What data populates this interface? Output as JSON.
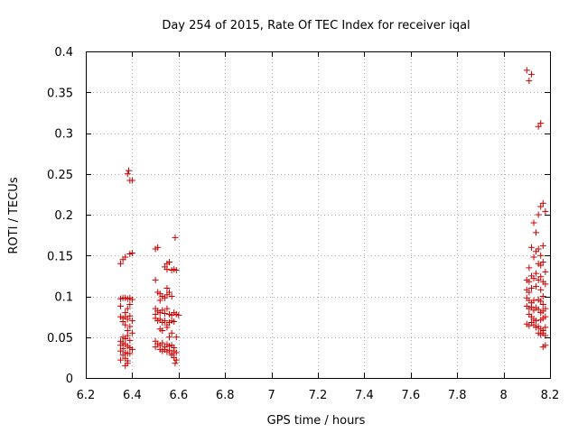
{
  "chart_data": {
    "type": "scatter",
    "title": "Day 254 of 2015, Rate Of TEC Index for receiver iqal",
    "xlabel": "GPS time / hours",
    "ylabel": "ROTI / TECUs",
    "xlim": [
      6.2,
      8.2
    ],
    "ylim": [
      0,
      0.4
    ],
    "x_ticks": [
      6.2,
      6.4,
      6.6,
      6.8,
      7,
      7.2,
      7.4,
      7.6,
      7.8,
      8,
      8.2
    ],
    "x_tick_labels": [
      "6.2",
      "6.4",
      "6.6",
      "6.8",
      "7",
      "7.2",
      "7.4",
      "7.6",
      "7.8",
      "8",
      "8.2"
    ],
    "y_ticks": [
      0,
      0.05,
      0.1,
      0.15,
      0.2,
      0.25,
      0.3,
      0.35,
      0.4
    ],
    "y_tick_labels": [
      "0",
      "0.05",
      "0.1",
      "0.15",
      "0.2",
      "0.25",
      "0.3",
      "0.35",
      "0.4"
    ],
    "grid": true,
    "marker": "+",
    "color": "#cc0000",
    "series": [
      {
        "name": "ROTI",
        "points": [
          [
            6.35,
            0.14
          ],
          [
            6.36,
            0.145
          ],
          [
            6.37,
            0.148
          ],
          [
            6.38,
            0.25
          ],
          [
            6.385,
            0.254
          ],
          [
            6.39,
            0.242
          ],
          [
            6.4,
            0.242
          ],
          [
            6.39,
            0.152
          ],
          [
            6.4,
            0.153
          ],
          [
            6.35,
            0.097
          ],
          [
            6.36,
            0.098
          ],
          [
            6.37,
            0.098
          ],
          [
            6.38,
            0.097
          ],
          [
            6.39,
            0.098
          ],
          [
            6.4,
            0.096
          ],
          [
            6.35,
            0.088
          ],
          [
            6.38,
            0.085
          ],
          [
            6.39,
            0.09
          ],
          [
            6.37,
            0.08
          ],
          [
            6.35,
            0.075
          ],
          [
            6.36,
            0.073
          ],
          [
            6.37,
            0.075
          ],
          [
            6.38,
            0.072
          ],
          [
            6.39,
            0.076
          ],
          [
            6.4,
            0.07
          ],
          [
            6.36,
            0.069
          ],
          [
            6.37,
            0.065
          ],
          [
            6.39,
            0.063
          ],
          [
            6.38,
            0.058
          ],
          [
            6.4,
            0.055
          ],
          [
            6.36,
            0.05
          ],
          [
            6.37,
            0.048
          ],
          [
            6.38,
            0.052
          ],
          [
            6.39,
            0.046
          ],
          [
            6.35,
            0.045
          ],
          [
            6.36,
            0.043
          ],
          [
            6.35,
            0.04
          ],
          [
            6.37,
            0.041
          ],
          [
            6.38,
            0.039
          ],
          [
            6.36,
            0.036
          ],
          [
            6.39,
            0.037
          ],
          [
            6.4,
            0.035
          ],
          [
            6.35,
            0.033
          ],
          [
            6.37,
            0.031
          ],
          [
            6.38,
            0.03
          ],
          [
            6.36,
            0.028
          ],
          [
            6.39,
            0.03
          ],
          [
            6.35,
            0.022
          ],
          [
            6.37,
            0.024
          ],
          [
            6.38,
            0.021
          ],
          [
            6.37,
            0.015
          ],
          [
            6.38,
            0.018
          ],
          [
            6.5,
            0.158
          ],
          [
            6.51,
            0.16
          ],
          [
            6.55,
            0.14
          ],
          [
            6.56,
            0.142
          ],
          [
            6.54,
            0.136
          ],
          [
            6.55,
            0.133
          ],
          [
            6.57,
            0.132
          ],
          [
            6.58,
            0.133
          ],
          [
            6.59,
            0.132
          ],
          [
            6.585,
            0.172
          ],
          [
            6.5,
            0.12
          ],
          [
            6.55,
            0.11
          ],
          [
            6.51,
            0.105
          ],
          [
            6.52,
            0.103
          ],
          [
            6.53,
            0.1
          ],
          [
            6.54,
            0.098
          ],
          [
            6.55,
            0.102
          ],
          [
            6.56,
            0.105
          ],
          [
            6.57,
            0.1
          ],
          [
            6.52,
            0.095
          ],
          [
            6.5,
            0.085
          ],
          [
            6.51,
            0.082
          ],
          [
            6.52,
            0.08
          ],
          [
            6.53,
            0.083
          ],
          [
            6.5,
            0.078
          ],
          [
            6.54,
            0.079
          ],
          [
            6.55,
            0.085
          ],
          [
            6.56,
            0.078
          ],
          [
            6.57,
            0.077
          ],
          [
            6.58,
            0.08
          ],
          [
            6.59,
            0.078
          ],
          [
            6.6,
            0.077
          ],
          [
            6.5,
            0.073
          ],
          [
            6.51,
            0.07
          ],
          [
            6.52,
            0.072
          ],
          [
            6.53,
            0.068
          ],
          [
            6.54,
            0.07
          ],
          [
            6.56,
            0.068
          ],
          [
            6.57,
            0.07
          ],
          [
            6.55,
            0.065
          ],
          [
            6.58,
            0.069
          ],
          [
            6.52,
            0.06
          ],
          [
            6.55,
            0.062
          ],
          [
            6.57,
            0.055
          ],
          [
            6.53,
            0.058
          ],
          [
            6.56,
            0.05
          ],
          [
            6.59,
            0.05
          ],
          [
            6.5,
            0.045
          ],
          [
            6.51,
            0.042
          ],
          [
            6.52,
            0.04
          ],
          [
            6.53,
            0.043
          ],
          [
            6.54,
            0.038
          ],
          [
            6.55,
            0.041
          ],
          [
            6.56,
            0.039
          ],
          [
            6.57,
            0.04
          ],
          [
            6.58,
            0.037
          ],
          [
            6.5,
            0.038
          ],
          [
            6.52,
            0.035
          ],
          [
            6.53,
            0.033
          ],
          [
            6.54,
            0.035
          ],
          [
            6.55,
            0.032
          ],
          [
            6.56,
            0.034
          ],
          [
            6.57,
            0.03
          ],
          [
            6.58,
            0.033
          ],
          [
            6.59,
            0.031
          ],
          [
            6.57,
            0.028
          ],
          [
            6.58,
            0.025
          ],
          [
            6.59,
            0.022
          ],
          [
            6.585,
            0.018
          ],
          [
            8.1,
            0.377
          ],
          [
            8.11,
            0.364
          ],
          [
            8.12,
            0.372
          ],
          [
            8.15,
            0.308
          ],
          [
            8.16,
            0.312
          ],
          [
            8.15,
            0.2
          ],
          [
            8.16,
            0.21
          ],
          [
            8.17,
            0.214
          ],
          [
            8.18,
            0.204
          ],
          [
            8.13,
            0.19
          ],
          [
            8.14,
            0.178
          ],
          [
            8.12,
            0.16
          ],
          [
            8.14,
            0.155
          ],
          [
            8.15,
            0.158
          ],
          [
            8.16,
            0.15
          ],
          [
            8.17,
            0.162
          ],
          [
            8.13,
            0.148
          ],
          [
            8.11,
            0.135
          ],
          [
            8.15,
            0.14
          ],
          [
            8.16,
            0.138
          ],
          [
            8.17,
            0.142
          ],
          [
            8.18,
            0.13
          ],
          [
            8.1,
            0.12
          ],
          [
            8.11,
            0.118
          ],
          [
            8.12,
            0.125
          ],
          [
            8.13,
            0.122
          ],
          [
            8.14,
            0.128
          ],
          [
            8.15,
            0.12
          ],
          [
            8.16,
            0.124
          ],
          [
            8.17,
            0.118
          ],
          [
            8.18,
            0.115
          ],
          [
            8.1,
            0.108
          ],
          [
            8.11,
            0.105
          ],
          [
            8.12,
            0.11
          ],
          [
            8.14,
            0.112
          ],
          [
            8.16,
            0.108
          ],
          [
            8.17,
            0.1
          ],
          [
            8.1,
            0.098
          ],
          [
            8.11,
            0.095
          ],
          [
            8.12,
            0.092
          ],
          [
            8.13,
            0.095
          ],
          [
            8.15,
            0.096
          ],
          [
            8.16,
            0.094
          ],
          [
            8.17,
            0.09
          ],
          [
            8.1,
            0.088
          ],
          [
            8.11,
            0.085
          ],
          [
            8.12,
            0.087
          ],
          [
            8.13,
            0.083
          ],
          [
            8.14,
            0.086
          ],
          [
            8.15,
            0.084
          ],
          [
            8.16,
            0.08
          ],
          [
            8.17,
            0.082
          ],
          [
            8.18,
            0.085
          ],
          [
            8.11,
            0.078
          ],
          [
            8.12,
            0.075
          ],
          [
            8.13,
            0.072
          ],
          [
            8.14,
            0.07
          ],
          [
            8.16,
            0.071
          ],
          [
            8.17,
            0.073
          ],
          [
            8.18,
            0.075
          ],
          [
            8.1,
            0.066
          ],
          [
            8.11,
            0.064
          ],
          [
            8.12,
            0.068
          ],
          [
            8.13,
            0.065
          ],
          [
            8.14,
            0.062
          ],
          [
            8.15,
            0.063
          ],
          [
            8.16,
            0.06
          ],
          [
            8.17,
            0.058
          ],
          [
            8.18,
            0.062
          ],
          [
            8.15,
            0.055
          ],
          [
            8.16,
            0.053
          ],
          [
            8.17,
            0.055
          ],
          [
            8.18,
            0.052
          ],
          [
            8.17,
            0.038
          ],
          [
            8.18,
            0.04
          ]
        ]
      }
    ]
  }
}
